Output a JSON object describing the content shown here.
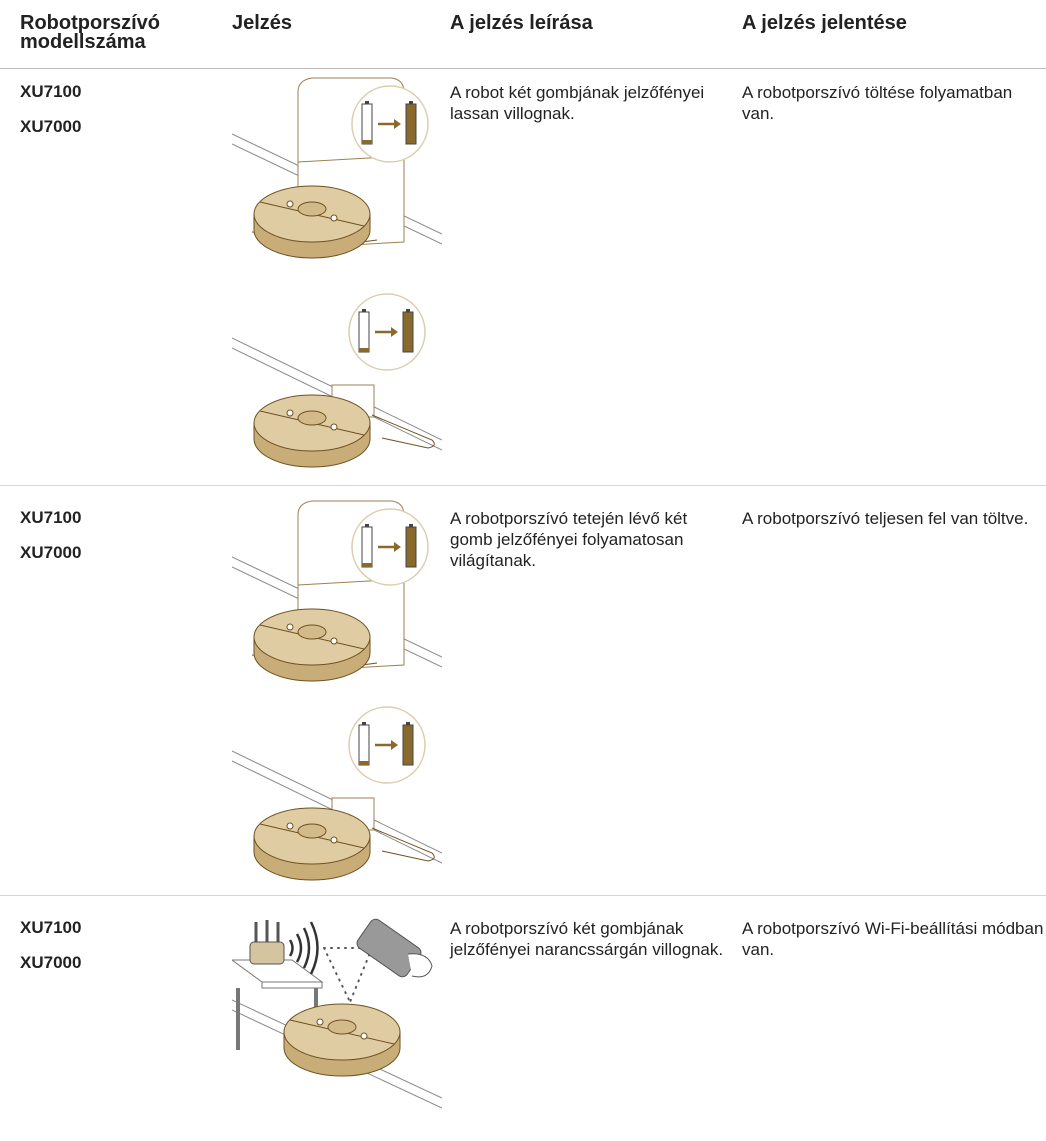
{
  "table": {
    "headers": [
      "Robotporszívó modellszáma",
      "Jelzés",
      "A jelzés leírása",
      "A jelzés jelentése"
    ],
    "rows": [
      {
        "models": [
          "XU7100",
          "XU7000"
        ],
        "description": "A robot két gombjának jelzőfényei lassan villognak.",
        "meaning": "A robotporszívó töltése folyamatban van."
      },
      {
        "models": [
          "XU7100",
          "XU7000"
        ],
        "description": "A robotporszívó tetején lévő két gomb jelzőfényei folyamatosan világítanak.",
        "meaning": "A robotporszívó teljesen fel van töltve."
      },
      {
        "models": [
          "XU7100",
          "XU7000"
        ],
        "description": "A robotporszívó két gombjának jelzőfényei narancssárgán villognak.",
        "meaning": "A robotporszívó Wi-Fi-beállítási módban van."
      }
    ]
  }
}
